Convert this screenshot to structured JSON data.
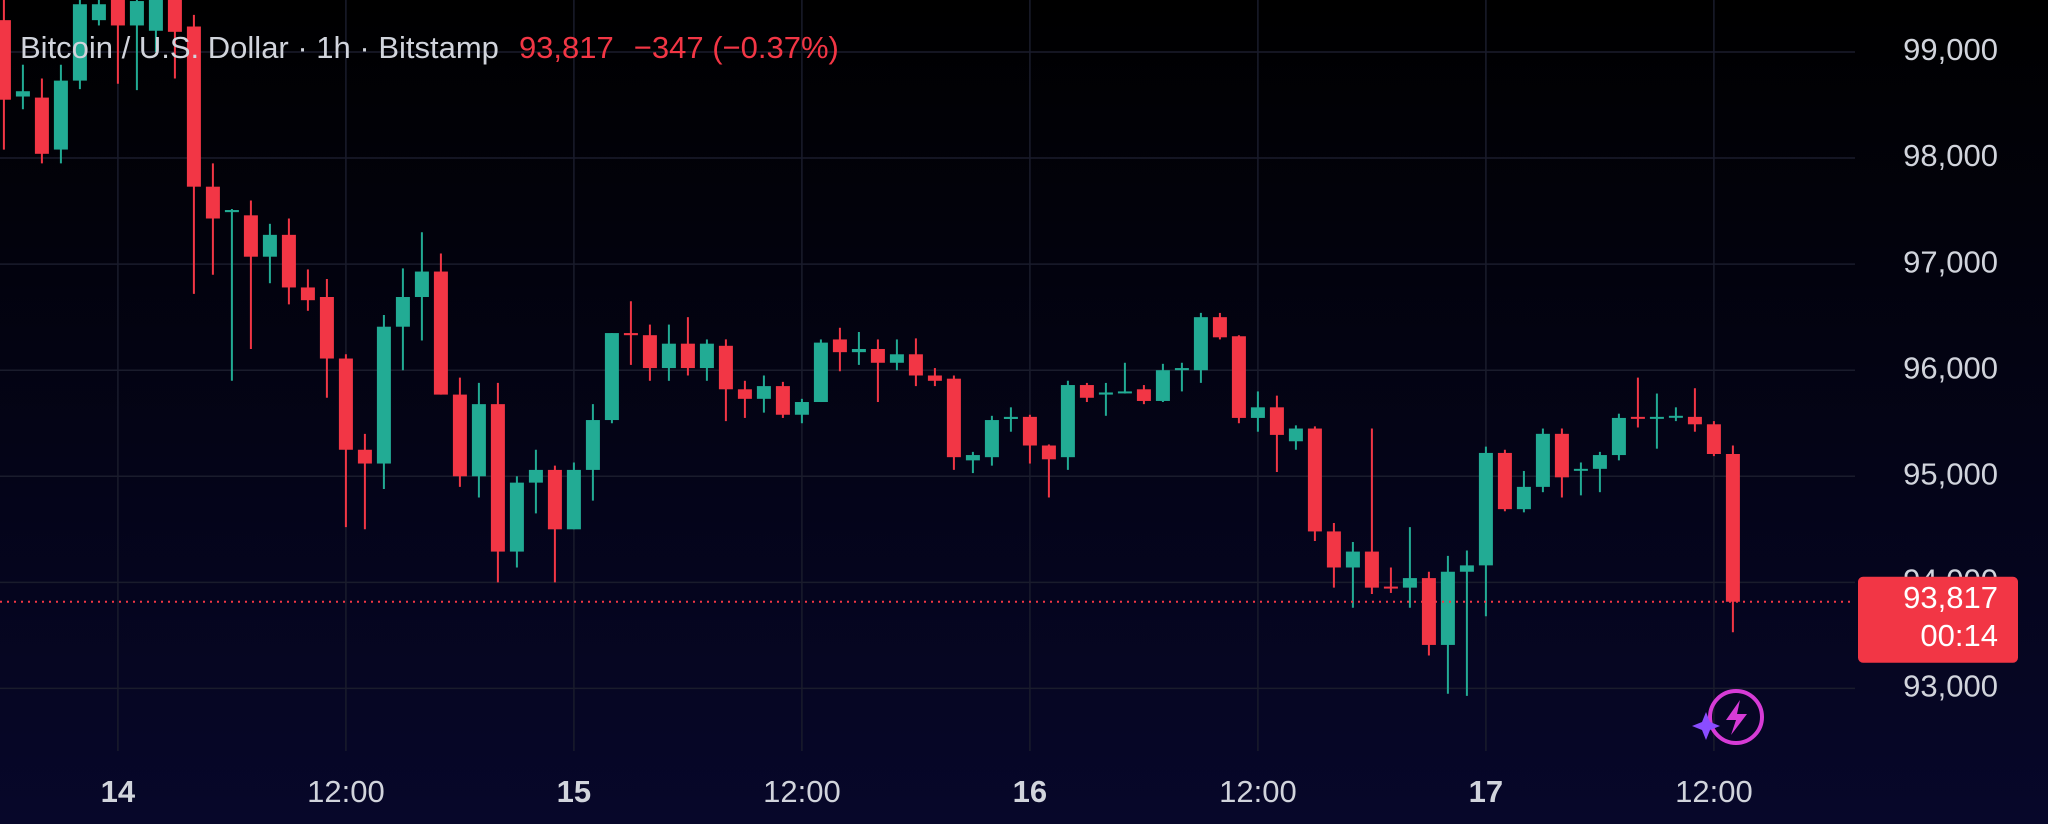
{
  "chart_data": {
    "type": "candlestick",
    "title": "Bitcoin / U.S. Dollar · 1h · Bitstamp",
    "last_price": {
      "value": 93817,
      "label": "93,817"
    },
    "change": "−347 (−0.37%)",
    "countdown": "00:14",
    "up_color": "#22ab94",
    "down_color": "#f23645",
    "grid": true,
    "ylim": [
      92410,
      99490
    ],
    "yticks": [
      {
        "value": 93000,
        "label": "93,000"
      },
      {
        "value": 94000,
        "label": "94,000"
      },
      {
        "value": 95000,
        "label": "95,000"
      },
      {
        "value": 96000,
        "label": "96,000"
      },
      {
        "value": 97000,
        "label": "97,000"
      },
      {
        "value": 98000,
        "label": "98,000"
      },
      {
        "value": 99000,
        "label": "99,000"
      }
    ],
    "categories": [
      null,
      null,
      null,
      null,
      null,
      null,
      "14",
      null,
      null,
      null,
      null,
      null,
      null,
      null,
      null,
      null,
      null,
      null,
      "12:00",
      null,
      null,
      null,
      null,
      null,
      null,
      null,
      null,
      null,
      null,
      null,
      "15",
      null,
      null,
      null,
      null,
      null,
      null,
      null,
      null,
      null,
      null,
      null,
      "12:00",
      null,
      null,
      null,
      null,
      null,
      null,
      null,
      null,
      null,
      null,
      null,
      "16",
      null,
      null,
      null,
      null,
      null,
      null,
      null,
      null,
      null,
      null,
      null,
      "12:00",
      null,
      null,
      null,
      null,
      null,
      null,
      null,
      null,
      null,
      null,
      null,
      "17",
      null,
      null,
      null,
      null,
      null,
      null,
      null,
      null,
      null,
      null,
      null,
      "12:00",
      null
    ],
    "open": [
      99300,
      98580,
      98570,
      98080,
      98730,
      99300,
      99493,
      99250,
      99200,
      99493,
      99240,
      97730,
      97490,
      97460,
      97070,
      97276,
      96780,
      96690,
      96110,
      95250,
      95120,
      96410,
      96690,
      96930,
      95770,
      95000,
      95680,
      94290,
      94940,
      95060,
      94500,
      95060,
      95530,
      96350,
      96330,
      96020,
      96250,
      96020,
      96230,
      95820,
      95730,
      95850,
      95580,
      95700,
      96290,
      96170,
      96200,
      96070,
      96150,
      95950,
      95920,
      95150,
      95180,
      95540,
      95560,
      95290,
      95180,
      95860,
      95770,
      95790,
      95820,
      95710,
      96000,
      96000,
      96500,
      96320,
      95550,
      95650,
      95330,
      95450,
      94480,
      94140,
      94290,
      93960,
      93950,
      94040,
      93410,
      94100,
      94160,
      95220,
      94690,
      94900,
      95400,
      95060,
      95070,
      95200,
      95560,
      95550,
      95560,
      95560,
      95490,
      95210
    ],
    "high": [
      99493,
      98880,
      98750,
      98880,
      99493,
      99493,
      99493,
      99493,
      99493,
      99493,
      99350,
      97950,
      97520,
      97600,
      97380,
      97430,
      96950,
      96860,
      96150,
      95400,
      96520,
      96960,
      97300,
      97100,
      95930,
      95880,
      95880,
      95000,
      95250,
      95100,
      95130,
      95680,
      96350,
      96650,
      96430,
      96430,
      96500,
      96290,
      96290,
      95900,
      95950,
      95890,
      95730,
      96290,
      96400,
      96360,
      96290,
      96290,
      96300,
      96020,
      95950,
      95230,
      95570,
      95650,
      95580,
      95300,
      95900,
      95880,
      95880,
      96070,
      95860,
      96060,
      96070,
      96540,
      96540,
      96330,
      95800,
      95760,
      95480,
      95470,
      94560,
      94380,
      95450,
      94140,
      94520,
      94100,
      94250,
      94300,
      95280,
      95250,
      95050,
      95450,
      95450,
      95130,
      95230,
      95590,
      95930,
      95780,
      95650,
      95830,
      95520,
      95290
    ],
    "low": [
      98080,
      98460,
      97950,
      97950,
      98650,
      99250,
      98700,
      98640,
      99000,
      98750,
      96720,
      96900,
      95900,
      96200,
      96820,
      96620,
      96560,
      95740,
      94520,
      94500,
      94880,
      96000,
      96280,
      95770,
      94900,
      94800,
      94000,
      94140,
      94650,
      94000,
      94500,
      94770,
      95500,
      96050,
      95900,
      95900,
      95950,
      95900,
      95520,
      95550,
      95600,
      95550,
      95500,
      95700,
      95990,
      96050,
      95700,
      96000,
      95850,
      95850,
      95060,
      95030,
      95100,
      95420,
      95120,
      94800,
      95060,
      95700,
      95570,
      95780,
      95680,
      95700,
      95800,
      95880,
      96290,
      95500,
      95420,
      95040,
      95250,
      94390,
      93950,
      93760,
      93890,
      93900,
      93760,
      93310,
      92950,
      92930,
      93680,
      94670,
      94660,
      94850,
      94800,
      94820,
      94850,
      95150,
      95460,
      95260,
      95520,
      95420,
      95190,
      93530
    ],
    "close": [
      98550,
      98630,
      98040,
      98730,
      99450,
      99450,
      99250,
      99480,
      99493,
      99190,
      97730,
      97430,
      97510,
      97070,
      97276,
      96780,
      96660,
      96110,
      95250,
      95120,
      96410,
      96690,
      96930,
      95770,
      95000,
      95680,
      94290,
      94940,
      95060,
      94500,
      95060,
      95530,
      96350,
      96330,
      96020,
      96250,
      96020,
      96250,
      95820,
      95730,
      95850,
      95580,
      95700,
      96260,
      96170,
      96200,
      96070,
      96150,
      95950,
      95900,
      95180,
      95200,
      95530,
      95560,
      95290,
      95160,
      95860,
      95740,
      95790,
      95800,
      95710,
      96000,
      96020,
      96500,
      96310,
      95550,
      95650,
      95390,
      95450,
      94480,
      94140,
      94290,
      93950,
      93950,
      94040,
      93410,
      94100,
      94160,
      95220,
      94690,
      94900,
      95400,
      94990,
      95070,
      95200,
      95550,
      95550,
      95560,
      95570,
      95490,
      95210,
      93817
    ]
  }
}
